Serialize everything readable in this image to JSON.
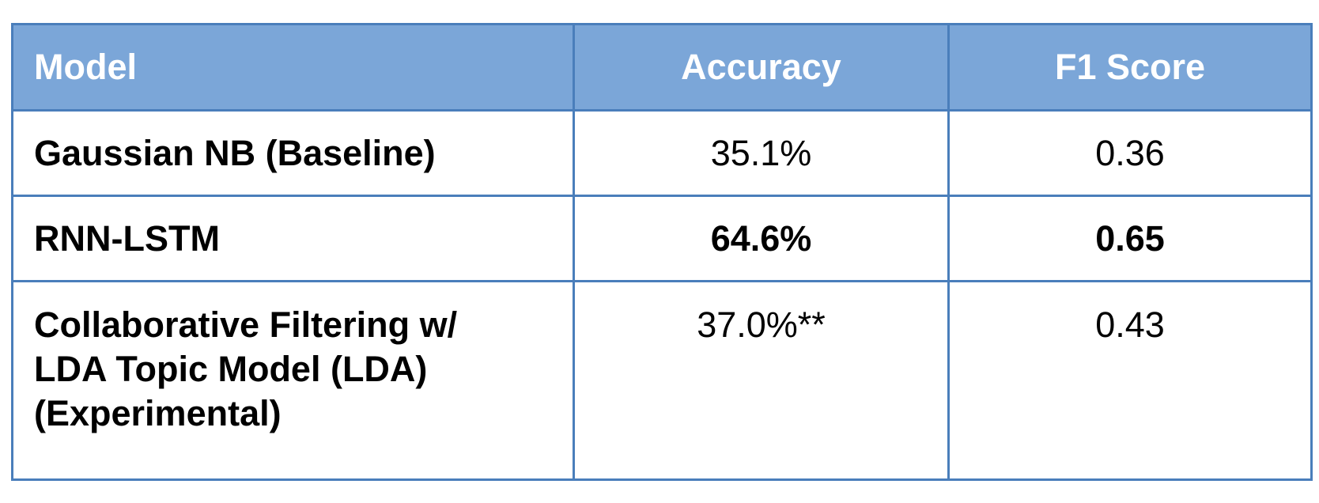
{
  "table": {
    "headers": {
      "model": "Model",
      "accuracy": "Accuracy",
      "f1": "F1 Score"
    },
    "rows": [
      {
        "model_lines": [
          "Gaussian NB (Baseline)"
        ],
        "accuracy": "35.1%",
        "f1": "0.36",
        "highlight": false
      },
      {
        "model_lines": [
          "RNN-LSTM"
        ],
        "accuracy": "64.6%",
        "f1": "0.65",
        "highlight": true
      },
      {
        "model_lines": [
          "Collaborative Filtering w/",
          "LDA Topic Model (LDA)",
          "(Experimental)"
        ],
        "accuracy": "37.0%**",
        "f1": "0.43",
        "highlight": false
      }
    ]
  },
  "colors": {
    "header_bg": "#7ba6d8",
    "border": "#4a7ebb",
    "header_text": "#ffffff",
    "highlight_text": "#72a85a"
  }
}
